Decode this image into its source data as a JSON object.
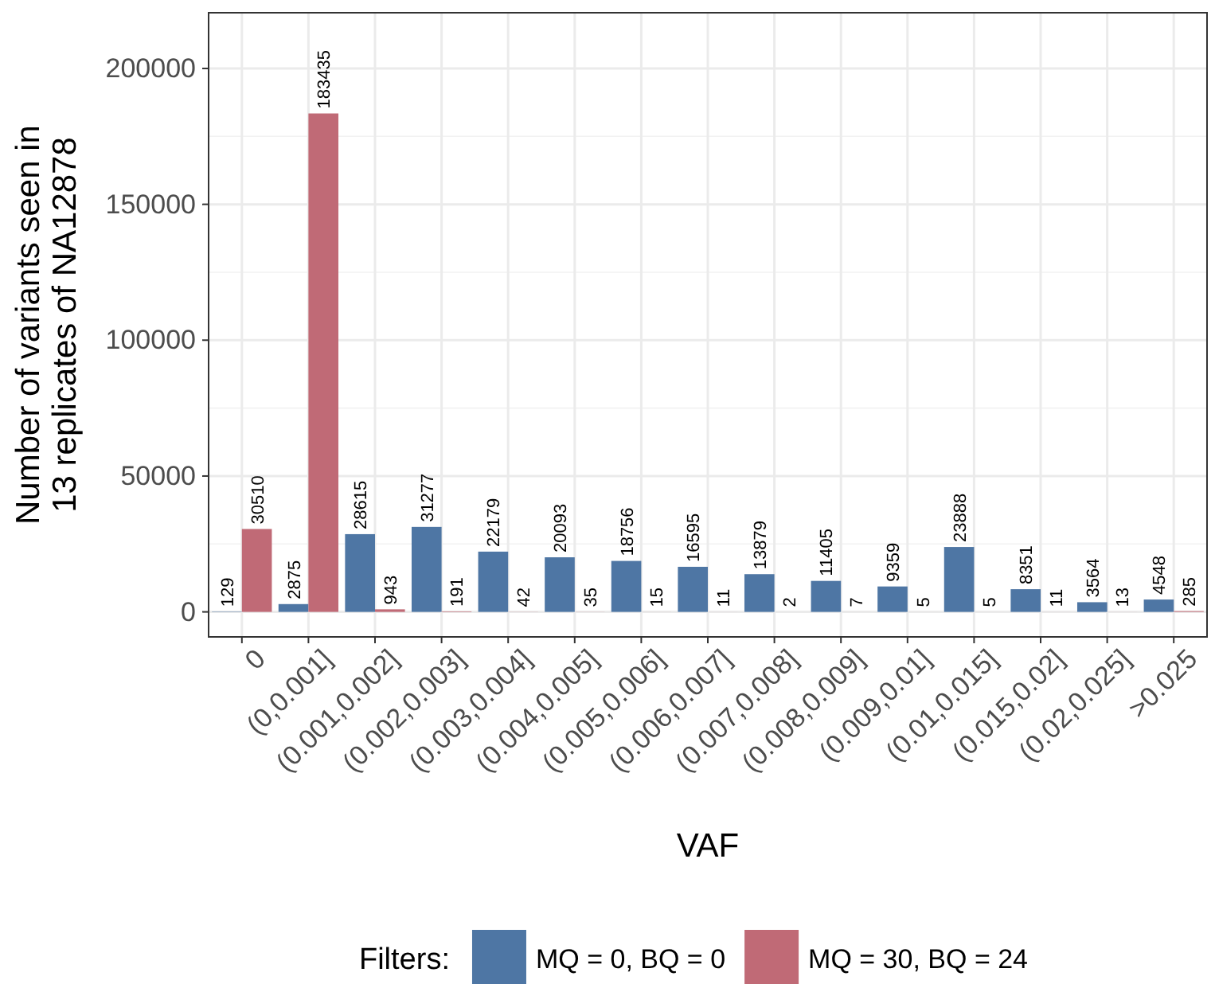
{
  "chart_data": {
    "type": "bar",
    "xlabel": "VAF",
    "ylabel": "Number of variants seen in\n13 replicates of NA12878",
    "legend_title": "Filters:",
    "categories": [
      "0",
      "(0,0.001]",
      "(0.001,0.002]",
      "(0.002,0.003]",
      "(0.003,0.004]",
      "(0.004,0.005]",
      "(0.005,0.006]",
      "(0.006,0.007]",
      "(0.007,0.008]",
      "(0.008,0.009]",
      "(0.009,0.01]",
      "(0.01,0.015]",
      "(0.015,0.02]",
      "(0.02,0.025]",
      ">0.025"
    ],
    "series": [
      {
        "name": "MQ = 0, BQ = 0",
        "color": "#4e76a4",
        "values": [
          129,
          2875,
          28615,
          31277,
          22179,
          20093,
          18756,
          16595,
          13879,
          11405,
          9359,
          23888,
          8351,
          3564,
          4548
        ]
      },
      {
        "name": "MQ = 30, BQ = 24",
        "color": "#c06a76",
        "values": [
          30510,
          183435,
          943,
          191,
          42,
          35,
          15,
          11,
          2,
          7,
          5,
          5,
          11,
          13,
          285
        ]
      }
    ],
    "ylim": [
      -9200,
      220500
    ],
    "yticks": [
      0,
      50000,
      100000,
      150000,
      200000
    ],
    "grid": true,
    "legend": "bottom",
    "data_labels": true
  }
}
